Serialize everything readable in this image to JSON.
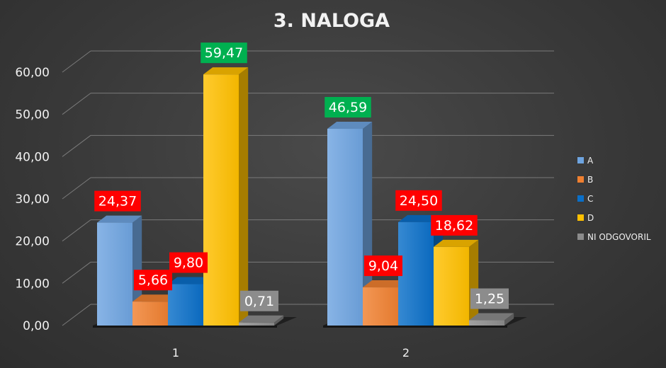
{
  "chart_data": {
    "type": "bar",
    "title": "3. NALOGA",
    "categories": [
      "1",
      "2"
    ],
    "ylim": [
      0,
      60
    ],
    "yticks": [
      "0,00",
      "10,00",
      "20,00",
      "30,00",
      "40,00",
      "50,00",
      "60,00"
    ],
    "grid": true,
    "legend_position": "right",
    "series": [
      {
        "name": "A",
        "values": [
          24.37,
          46.59
        ],
        "labels": [
          "24,37",
          "46,59"
        ],
        "color": "#6ea4e0",
        "label_bg": [
          "#ff0000",
          "#00b050"
        ]
      },
      {
        "name": "B",
        "values": [
          5.66,
          9.04
        ],
        "labels": [
          "5,66",
          "9,04"
        ],
        "color": "#f08030",
        "label_bg": [
          "#ff0000",
          "#ff0000"
        ]
      },
      {
        "name": "C",
        "values": [
          9.8,
          24.5
        ],
        "labels": [
          "9,80",
          "24,50"
        ],
        "color": "#0a6fc8",
        "label_bg": [
          "#ff0000",
          "#ff0000"
        ]
      },
      {
        "name": "D",
        "values": [
          59.47,
          18.62
        ],
        "labels": [
          "59,47",
          "18,62"
        ],
        "color": "#ffc000",
        "label_bg": [
          "#00b050",
          "#ff0000"
        ]
      },
      {
        "name": "NI ODGOVORIL",
        "values": [
          0.71,
          1.25
        ],
        "labels": [
          "0,71",
          "1,25"
        ],
        "color": "#8c8c8c",
        "label_bg": [
          "#8c8c8c",
          "#8c8c8c"
        ]
      }
    ]
  }
}
